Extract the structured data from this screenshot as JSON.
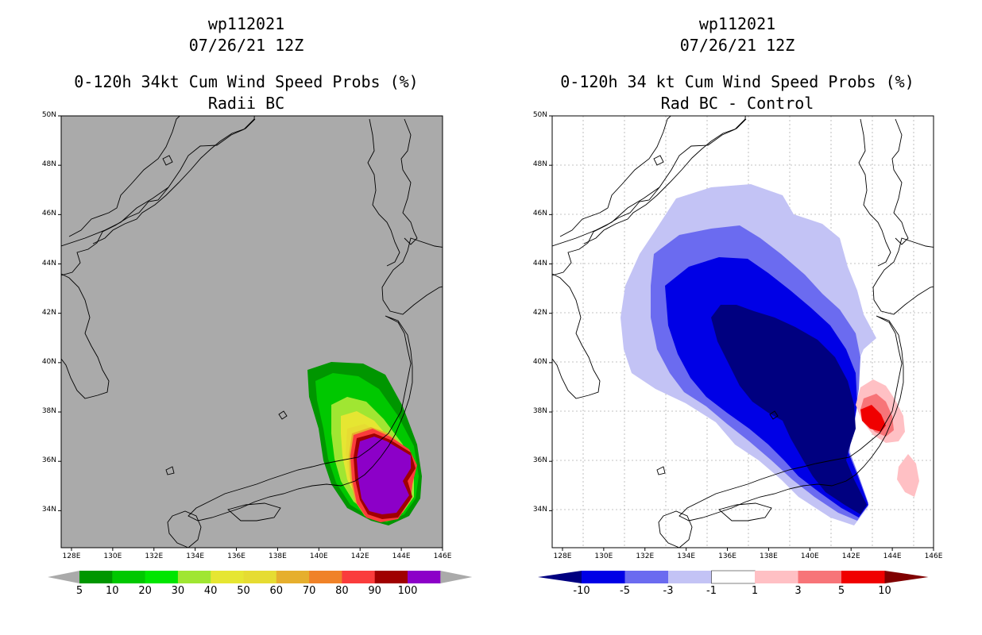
{
  "left_panel": {
    "title_line1": "wp112021",
    "title_line2": "07/26/21 12Z",
    "title_line3": "0-120h 34kt Cum Wind Speed Probs (%)",
    "title_line4": "Radii BC",
    "background_color": "#aaaaaa",
    "colorbar": {
      "labels": [
        "5",
        "10",
        "20",
        "30",
        "40",
        "50",
        "60",
        "70",
        "80",
        "90",
        "100"
      ],
      "colors": [
        "#009600",
        "#00c800",
        "#00e600",
        "#a0e632",
        "#e6e632",
        "#e6dc32",
        "#e6af2d",
        "#f08228",
        "#fa3c3c",
        "#a00000",
        "#8c00c8"
      ]
    }
  },
  "right_panel": {
    "title_line1": "wp112021",
    "title_line2": "07/26/21 12Z",
    "title_line3": "0-120h 34 kt Cum Wind Speed Probs (%)",
    "title_line4": "Rad BC - Control",
    "colorbar": {
      "labels": [
        "-10",
        "-5",
        "-3",
        "-1",
        "1",
        "3",
        "5",
        "10"
      ],
      "colors": [
        "#000080",
        "#0000e6",
        "#6b6bf0",
        "#c3c3f5",
        "#ffffff",
        "#ffc0c4",
        "#f77478",
        "#f00000",
        "#800000"
      ]
    }
  },
  "x_ticks": [
    "128E",
    "130E",
    "132E",
    "134E",
    "136E",
    "138E",
    "140E",
    "142E",
    "144E",
    "146E"
  ],
  "y_ticks": [
    "50N",
    "48N",
    "46N",
    "44N",
    "42N",
    "40N",
    "38N",
    "36N",
    "34N"
  ],
  "map_extent": {
    "lon_min": 127.5,
    "lon_max": 146,
    "lat_min": 32.5,
    "lat_max": 50
  }
}
